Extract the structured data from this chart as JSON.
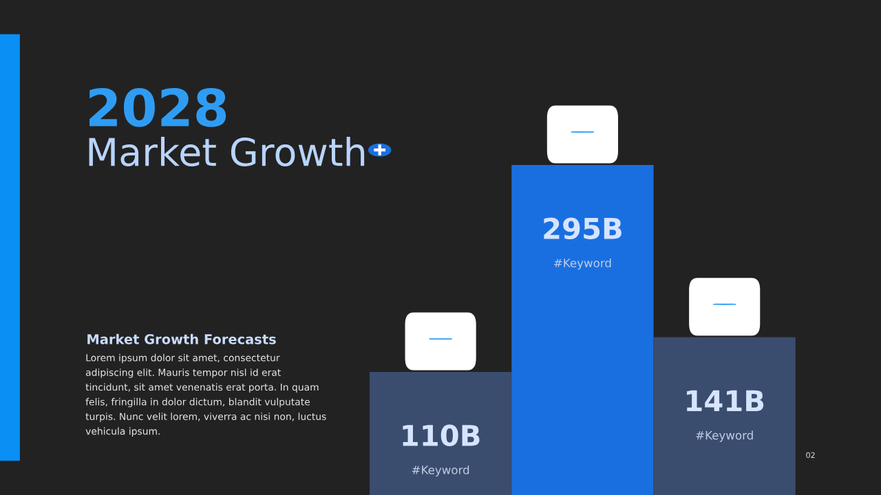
{
  "chart_data": {
    "type": "bar",
    "title": "2028",
    "subtitle": "Market Growth",
    "categories": [
      "#Keyword",
      "#Keyword",
      "#Keyword"
    ],
    "values": [
      110,
      295,
      141
    ],
    "colors": [
      "#3a4d6e",
      "#1a6fe0",
      "#3a4d6e"
    ],
    "value_labels": [
      "110B",
      "295B",
      "141B"
    ],
    "annotations": [
      "Market Growth Forecasts",
      "Lorem ipsum dolor sit amet, consectetur\nadipiscing elit. Mauris tempor nisl id erat\ntincidunt, sit amet venenatis erat porta. In quam\nfelis, fringilla in dolor dictum, blandit vulputate\nturpis. Nunc velit lorem, viverra ac nisi non, luctus\nvehicula ipsum.",
      "02"
    ],
    "legend": false
  }
}
